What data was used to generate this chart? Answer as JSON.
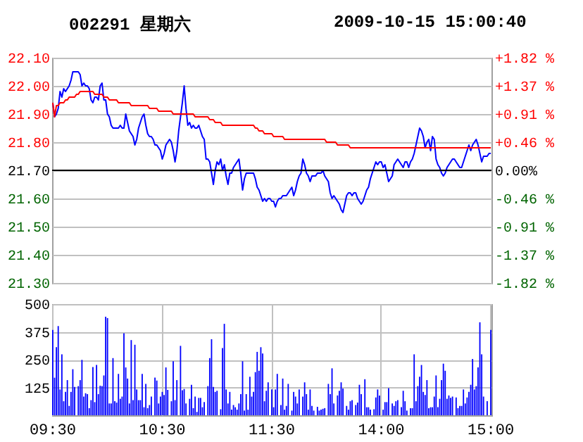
{
  "chart_data": [
    {
      "type": "line",
      "title": "002291 星期六",
      "annotations": [
        "2009-10-15 15:00:40"
      ],
      "categories": [
        null,
        null,
        null,
        null,
        null,
        null,
        null,
        null,
        null,
        null,
        null,
        null,
        null,
        null,
        null,
        null,
        null,
        null,
        null,
        null,
        null,
        null,
        null,
        null,
        null,
        null,
        null,
        null,
        null,
        null,
        null,
        null,
        null,
        null,
        null,
        null,
        null,
        null,
        null,
        null,
        null,
        null,
        null,
        null,
        null,
        null,
        null,
        null,
        null,
        null,
        null,
        null,
        null,
        null,
        null,
        null,
        null,
        null,
        null,
        null,
        null,
        null,
        null,
        null,
        null,
        null,
        null,
        null,
        null,
        null,
        null,
        null,
        null,
        null,
        null,
        null,
        null,
        null,
        null,
        null,
        null,
        null,
        null,
        null,
        null,
        null,
        null,
        null,
        null,
        null,
        null,
        null,
        null,
        null,
        null,
        null,
        null,
        null,
        null,
        null,
        null,
        null,
        null,
        null,
        null,
        null,
        null,
        null,
        null,
        null,
        null,
        null,
        null,
        null,
        null,
        null,
        null,
        null,
        null,
        null,
        null,
        null,
        null,
        null,
        null,
        null,
        null,
        null,
        null,
        null,
        null,
        null,
        null,
        null,
        null,
        null,
        null,
        null,
        null,
        null,
        null,
        null,
        null,
        null,
        null,
        null,
        null,
        null,
        null,
        null,
        null,
        null,
        null,
        null,
        null,
        null,
        null,
        null,
        null,
        null,
        null,
        null,
        null,
        null,
        null,
        null,
        null,
        null,
        null,
        null,
        null,
        null,
        null,
        null,
        null,
        null,
        null,
        null,
        null,
        null,
        null,
        null,
        null,
        null,
        null,
        null,
        null,
        null,
        null,
        null,
        null,
        null,
        null,
        null,
        null,
        null,
        null,
        null,
        null,
        null,
        null,
        null,
        null,
        null,
        null,
        null,
        null,
        null,
        null,
        null,
        null,
        null,
        null,
        null,
        null,
        null,
        null,
        null,
        null,
        null,
        null,
        null,
        null,
        null,
        null,
        null,
        null,
        null,
        null,
        null,
        null,
        null,
        null,
        null,
        null,
        null,
        null,
        null,
        null,
        null,
        null
      ],
      "ylim": [
        21.3,
        22.1
      ],
      "yticks": [
        {
          "value": 21.3,
          "label": "21.30"
        },
        {
          "value": 21.4,
          "label": "21.40"
        },
        {
          "value": 21.5,
          "label": "21.50"
        },
        {
          "value": 21.6,
          "label": "21.60"
        },
        {
          "value": 21.7,
          "label": "21.70"
        },
        {
          "value": 21.8,
          "label": "21.80"
        },
        {
          "value": 21.9,
          "label": "21.90"
        },
        {
          "value": 22.0,
          "label": "22.00"
        },
        {
          "value": 22.1,
          "label": "22.10"
        }
      ],
      "y2lim": [
        -1.82,
        1.82
      ],
      "y2ticks": [
        {
          "value": -1.82,
          "label": "-1.82 %"
        },
        {
          "value": -1.37,
          "label": "-1.37 %"
        },
        {
          "value": -0.91,
          "label": "-0.91 %"
        },
        {
          "value": -0.46,
          "label": "-0.46 %"
        },
        {
          "value": 0,
          "label": "0.00%"
        },
        {
          "value": 0.46,
          "label": "+0.46 %"
        },
        {
          "value": 0.91,
          "label": "+0.91 %"
        },
        {
          "value": 1.37,
          "label": "+1.37 %"
        },
        {
          "value": 1.82,
          "label": "+1.82 %"
        }
      ],
      "grid": true,
      "ref_lines": [
        {
          "axis": "y",
          "value": 21.7,
          "color": "#000000"
        }
      ],
      "series": [
        {
          "color": "#0000ff",
          "values": [
            21.94,
            21.89,
            21.9,
            21.92,
            21.98,
            21.96,
            21.99,
            21.98,
            21.99,
            22.0,
            22.02,
            22.05,
            22.05,
            22.05,
            22.05,
            22.04,
            22.0,
            22.01,
            22.0,
            22.0,
            21.99,
            21.95,
            21.94,
            21.96,
            21.96,
            21.95,
            22.0,
            22.01,
            21.95,
            21.95,
            21.9,
            21.89,
            21.86,
            21.85,
            21.85,
            21.85,
            21.85,
            21.86,
            21.85,
            21.85,
            21.9,
            21.87,
            21.84,
            21.83,
            21.82,
            21.79,
            21.81,
            21.85,
            21.87,
            21.89,
            21.9,
            21.86,
            21.83,
            21.82,
            21.82,
            21.81,
            21.79,
            21.79,
            21.78,
            21.77,
            21.74,
            21.76,
            21.79,
            21.8,
            21.81,
            21.8,
            21.77,
            21.73,
            21.77,
            21.84,
            21.89,
            21.94,
            22.0,
            21.92,
            21.86,
            21.87,
            21.85,
            21.86,
            21.85,
            21.85,
            21.86,
            21.84,
            21.82,
            21.81,
            21.74,
            21.74,
            21.73,
            21.69,
            21.65,
            21.7,
            21.73,
            21.72,
            21.74,
            21.7,
            21.72,
            21.68,
            21.65,
            21.69,
            21.69,
            21.71,
            21.72,
            21.73,
            21.74,
            21.69,
            21.63,
            21.67,
            21.69,
            21.69,
            21.69,
            21.69,
            21.69,
            21.67,
            21.64,
            21.63,
            21.61,
            21.59,
            21.6,
            21.59,
            21.6,
            21.6,
            21.59,
            21.59,
            21.57,
            21.59,
            21.6,
            21.6,
            21.61,
            21.61,
            21.61,
            21.62,
            21.63,
            21.64,
            21.61,
            21.63,
            21.66,
            21.68,
            21.69,
            21.74,
            21.72,
            21.69,
            21.68,
            21.66,
            21.68,
            21.68,
            21.68,
            21.69,
            21.69,
            21.69,
            21.7,
            21.68,
            21.67,
            21.66,
            21.62,
            21.6,
            21.61,
            21.6,
            21.59,
            21.58,
            21.56,
            21.55,
            21.58,
            21.61,
            21.62,
            21.62,
            21.61,
            21.62,
            21.62,
            21.6,
            21.59,
            21.58,
            21.59,
            21.61,
            21.63,
            21.64,
            21.67,
            21.69,
            21.71,
            21.73,
            21.72,
            21.73,
            21.73,
            21.71,
            21.72,
            21.69,
            21.66,
            21.67,
            21.68,
            21.72,
            21.73,
            21.74,
            21.73,
            21.72,
            21.71,
            21.73,
            21.73,
            21.71,
            21.73,
            21.74,
            21.76,
            21.79,
            21.82,
            21.85,
            21.84,
            21.82,
            21.78,
            21.8,
            21.81,
            21.77,
            21.82,
            21.81,
            21.74,
            21.72,
            21.71,
            21.69,
            21.68,
            21.69,
            21.71,
            21.72,
            21.73,
            21.74,
            21.74,
            21.73,
            21.72,
            21.71,
            21.71,
            21.73,
            21.75,
            21.77,
            21.79,
            21.77,
            21.79,
            21.8,
            21.81,
            21.79,
            21.76,
            21.73,
            21.75,
            21.75,
            21.75,
            21.76,
            21.76
          ]
        },
        {
          "color": "#ff0000",
          "values": [
            21.94,
            21.89,
            21.93,
            21.93,
            21.94,
            21.94,
            21.94,
            21.95,
            21.95,
            21.96,
            21.96,
            21.96,
            21.96,
            21.97,
            21.97,
            21.98,
            21.98,
            21.98,
            21.98,
            21.98,
            21.98,
            21.98,
            21.98,
            21.97,
            21.97,
            21.97,
            21.97,
            21.97,
            21.96,
            21.96,
            21.96,
            21.95,
            21.95,
            21.95,
            21.95,
            21.95,
            21.94,
            21.94,
            21.94,
            21.94,
            21.94,
            21.94,
            21.94,
            21.93,
            21.93,
            21.93,
            21.93,
            21.93,
            21.93,
            21.93,
            21.93,
            21.93,
            21.93,
            21.92,
            21.92,
            21.92,
            21.92,
            21.92,
            21.91,
            21.91,
            21.91,
            21.91,
            21.91,
            21.91,
            21.91,
            21.91,
            21.9,
            21.9,
            21.9,
            21.9,
            21.9,
            21.9,
            21.9,
            21.9,
            21.9,
            21.9,
            21.9,
            21.9,
            21.89,
            21.89,
            21.89,
            21.89,
            21.89,
            21.89,
            21.89,
            21.89,
            21.88,
            21.88,
            21.88,
            21.87,
            21.87,
            21.87,
            21.87,
            21.86,
            21.86,
            21.86,
            21.86,
            21.86,
            21.86,
            21.86,
            21.86,
            21.86,
            21.86,
            21.86,
            21.86,
            21.86,
            21.86,
            21.86,
            21.86,
            21.86,
            21.86,
            21.85,
            21.85,
            21.84,
            21.84,
            21.84,
            21.83,
            21.83,
            21.83,
            21.83,
            21.83,
            21.82,
            21.82,
            21.82,
            21.82,
            21.82,
            21.82,
            21.81,
            21.81,
            21.81,
            21.81,
            21.81,
            21.81,
            21.81,
            21.81,
            21.81,
            21.81,
            21.81,
            21.81,
            21.81,
            21.81,
            21.81,
            21.81,
            21.81,
            21.81,
            21.81,
            21.81,
            21.81,
            21.81,
            21.81,
            21.8,
            21.8,
            21.8,
            21.8,
            21.8,
            21.8,
            21.79,
            21.79,
            21.79,
            21.79,
            21.79,
            21.79,
            21.79,
            21.78,
            21.78,
            21.78,
            21.78,
            21.78,
            21.78,
            21.78,
            21.78,
            21.78,
            21.78,
            21.78,
            21.78,
            21.78,
            21.78,
            21.78,
            21.78,
            21.78,
            21.78,
            21.78,
            21.78,
            21.78,
            21.78,
            21.78,
            21.78,
            21.78,
            21.78,
            21.78,
            21.78,
            21.78,
            21.78,
            21.78,
            21.78,
            21.78,
            21.78,
            21.78,
            21.78,
            21.78,
            21.78,
            21.78,
            21.78,
            21.78,
            21.78,
            21.78,
            21.78,
            21.78,
            21.78,
            21.78,
            21.78,
            21.78,
            21.78,
            21.78,
            21.78,
            21.78,
            21.78,
            21.78,
            21.78,
            21.78,
            21.78,
            21.78,
            21.78,
            21.78,
            21.78,
            21.78,
            21.78,
            21.78,
            21.78,
            21.78,
            21.78,
            21.78,
            21.78,
            21.78,
            21.78,
            21.78,
            21.78,
            21.78,
            21.78,
            21.78,
            21.78
          ]
        }
      ]
    },
    {
      "type": "bar",
      "categories": [
        "09:30",
        null,
        null,
        null,
        null,
        null,
        null,
        null,
        null,
        null,
        null,
        null,
        null,
        null,
        null,
        null,
        null,
        null,
        null,
        null,
        null,
        null,
        null,
        null,
        null,
        null,
        null,
        null,
        null,
        null,
        null,
        null,
        null,
        null,
        null,
        null,
        null,
        null,
        null,
        null,
        null,
        null,
        null,
        null,
        null,
        null,
        null,
        null,
        null,
        null,
        null,
        null,
        null,
        null,
        null,
        null,
        null,
        null,
        null,
        null,
        "10:30",
        null,
        null,
        null,
        null,
        null,
        null,
        null,
        null,
        null,
        null,
        null,
        null,
        null,
        null,
        null,
        null,
        null,
        null,
        null,
        null,
        null,
        null,
        null,
        null,
        null,
        null,
        null,
        null,
        null,
        null,
        null,
        null,
        null,
        null,
        null,
        null,
        null,
        null,
        null,
        null,
        null,
        null,
        null,
        null,
        null,
        null,
        null,
        null,
        null,
        null,
        null,
        null,
        null,
        null,
        null,
        null,
        null,
        null,
        null,
        "11:30",
        null,
        null,
        null,
        null,
        null,
        null,
        null,
        null,
        null,
        null,
        null,
        null,
        null,
        null,
        null,
        null,
        null,
        null,
        null,
        null,
        null,
        null,
        null,
        null,
        null,
        null,
        null,
        null,
        null,
        null,
        null,
        null,
        null,
        null,
        null,
        null,
        null,
        null,
        null,
        null,
        null,
        null,
        null,
        null,
        null,
        null,
        null,
        null,
        null,
        null,
        null,
        null,
        null,
        null,
        null,
        null,
        null,
        null,
        null,
        "14:00",
        null,
        null,
        null,
        null,
        null,
        null,
        null,
        null,
        null,
        null,
        null,
        null,
        null,
        null,
        null,
        null,
        null,
        null,
        null,
        null,
        null,
        null,
        null,
        null,
        null,
        null,
        null,
        null,
        null,
        null,
        null,
        null,
        null,
        null,
        null,
        null,
        null,
        null,
        null,
        null,
        null,
        null,
        null,
        null,
        null,
        null,
        null,
        null,
        null,
        null,
        null,
        null,
        null,
        null,
        null,
        null,
        null,
        null,
        null,
        "15:00"
      ],
      "ylim": [
        0,
        500
      ],
      "yticks": [
        125,
        250,
        375,
        500
      ],
      "grid": true,
      "series": [
        {
          "color": "#0000ff",
          "values": [
            384,
            169,
            306,
            401,
            116,
            274,
            63,
            105,
            158,
            42,
            105,
            207,
            127,
            null,
            131,
            158,
            249,
            84,
            99,
            95,
            32,
            68,
            217,
            59,
            226,
            95,
            133,
            131,
            179,
            443,
            437,
            53,
            53,
            257,
            63,
            57,
            186,
            74,
            84,
            369,
            215,
            165,
            53,
            338,
            68,
            317,
            116,
            68,
            68,
            186,
            36,
            141,
            32,
            46,
            84,
            null,
            169,
            156,
            53,
            84,
            105,
            91,
            215,
            114,
            null,
            63,
            243,
            68,
            158,
            null,
            312,
            112,
            118,
            53,
            null,
            74,
            137,
            32,
            84,
            15,
            78,
            78,
            36,
            59,
            null,
            131,
            257,
            342,
            127,
            105,
            110,
            null,
            27,
            302,
            411,
            116,
            53,
            105,
            25,
            46,
            36,
            25,
            53,
            95,
            243,
            21,
            95,
            25,
            173,
            84,
            105,
            194,
            285,
            200,
            306,
            278,
            63,
            110,
            148,
            null,
            116,
            36,
            116,
            186,
            null,
            46,
            165,
            25,
            42,
            141,
            null,
            21,
            105,
            84,
            53,
            116,
            null,
            84,
            148,
            95,
            25,
            116,
            42,
            21,
            null,
            38,
            21,
            25,
            29,
            32,
            null,
            141,
            95,
            211,
            53,
            null,
            89,
            110,
            148,
            120,
            null,
            42,
            25,
            63,
            68,
            null,
            46,
            57,
            137,
            95,
            null,
            162,
            36,
            36,
            25,
            null,
            27,
            80,
            116,
            89,
            null,
            25,
            59,
            59,
            122,
            null,
            53,
            42,
            63,
            68,
            null,
            36,
            110,
            63,
            21,
            null,
            32,
            32,
            274,
            63,
            131,
            173,
            226,
            105,
            91,
            158,
            32,
            36,
            36,
            84,
            179,
            36,
            74,
            158,
            232,
            200,
            74,
            89,
            78,
            84,
            null,
            80,
            32,
            42,
            42,
            116,
            53,
            80,
            105,
            137,
            253,
            116,
            131,
            215,
            418,
            274,
            84,
            null,
            63,
            null,
            384
          ]
        }
      ]
    }
  ]
}
